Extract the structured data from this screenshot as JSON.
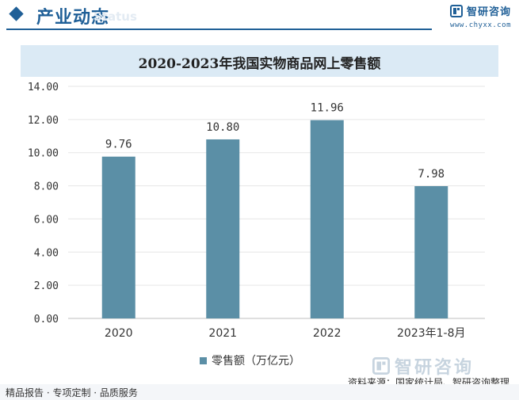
{
  "header": {
    "title": "产业动态",
    "ghost_text": "Status",
    "brand_name": "智研咨询",
    "brand_url": "www.chyxx.com"
  },
  "chart_data": {
    "type": "bar",
    "title": "2020-2023年我国实物商品网上零售额",
    "categories": [
      "2020",
      "2021",
      "2022",
      "2023年1-8月"
    ],
    "series": [
      {
        "name": "零售额（万亿元）",
        "values": [
          9.76,
          10.8,
          11.96,
          7.98
        ]
      }
    ],
    "data_labels": [
      "9.76",
      "10.80",
      "11.96",
      "7.98"
    ],
    "ylim": [
      0,
      14
    ],
    "yticks": [
      "0.00",
      "2.00",
      "4.00",
      "6.00",
      "8.00",
      "10.00",
      "12.00",
      "14.00"
    ],
    "grid": true,
    "legend_position": "bottom",
    "bar_color": "#5b8fa6"
  },
  "footer": {
    "watermark_brand": "智研咨询",
    "source": "资料来源：国家统计局、智研咨询整理",
    "left_text": "精品报告 · 专项定制 · 品质服务"
  }
}
